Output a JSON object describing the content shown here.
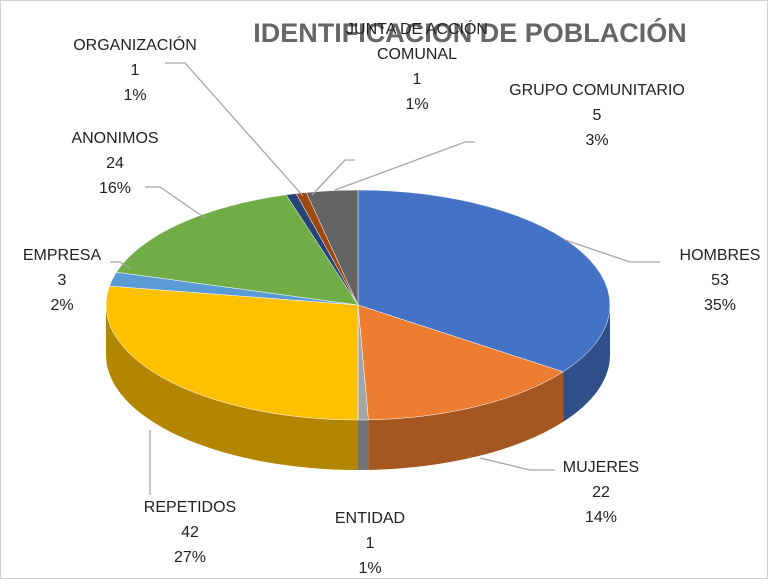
{
  "chart_data": {
    "type": "pie",
    "title": "IDENTIFICACION DE POBLACIÓN",
    "categories": [
      "HOMBRES",
      "MUJERES",
      "ENTIDAD",
      "REPETIDOS",
      "EMPRESA",
      "ANONIMOS",
      "ORGANIZACIÓN",
      "JUNTA DE ACCIÓN COMUNAL",
      "GRUPO COMUNITARIO"
    ],
    "values": [
      53,
      22,
      1,
      42,
      3,
      24,
      1,
      1,
      5
    ],
    "percent_labels": [
      "35%",
      "14%",
      "1%",
      "27%",
      "2%",
      "16%",
      "1%",
      "1%",
      "3%"
    ],
    "colors": [
      "#4472c4",
      "#ed7d31",
      "#a5a5a5",
      "#ffc000",
      "#5b9bd5",
      "#70ad47",
      "#264478",
      "#9e480e",
      "#636363"
    ]
  }
}
